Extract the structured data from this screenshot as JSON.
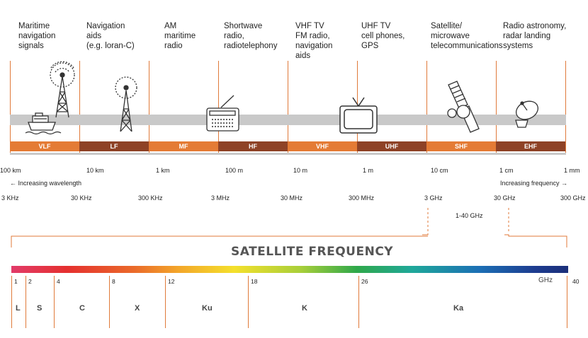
{
  "categories": [
    {
      "text": "Maritime\nnavigation\nsignals"
    },
    {
      "text": "Navigation\naids\n(e.g. loran-C)"
    },
    {
      "text": "AM\nmaritime\nradio"
    },
    {
      "text": "Shortwave\nradio,\nradiotelephony"
    },
    {
      "text": "VHF TV\nFM radio,\nnavigation\naids"
    },
    {
      "text": "UHF TV\ncell phones,\nGPS"
    },
    {
      "text": "Satellite/\nmicrowave\ntelecommunications"
    },
    {
      "text": "Radio astronomy,\nradar landing\nsystems"
    }
  ],
  "bands": [
    "VLF",
    "LF",
    "MF",
    "HF",
    "VHF",
    "UHF",
    "SHF",
    "EHF"
  ],
  "band_colors": {
    "orange": "#e47b35",
    "brown": "#8e4226"
  },
  "wavelengths": [
    "100 km",
    "10 km",
    "1 km",
    "100 m",
    "10 m",
    "1 m",
    "10 cm",
    "1 cm",
    "1 mm"
  ],
  "frequencies": [
    "3 KHz",
    "30 KHz",
    "300 KHz",
    "3 MHz",
    "30 MHz",
    "300 MHz",
    "3 GHz",
    "30 GHz",
    "300 GHz"
  ],
  "increasing_wavelength": "← Increasing wavelength",
  "increasing_frequency": "Increasing frequency →",
  "range_label": "1-40 GHz",
  "satellite_title": "SATELLITE FREQUENCY",
  "sat_unit": "GHz",
  "sat_ticks": [
    "1",
    "2",
    "4",
    "8",
    "12",
    "18",
    "26",
    "40"
  ],
  "sat_bands": [
    "L",
    "S",
    "C",
    "X",
    "Ku",
    "K",
    "Ka"
  ],
  "icons": [
    "ship-icon",
    "radio-tower-icon",
    "antenna-tower-icon",
    "radio-receiver-icon",
    "television-icon",
    "satellite-icon",
    "satellite-dish-icon"
  ]
}
